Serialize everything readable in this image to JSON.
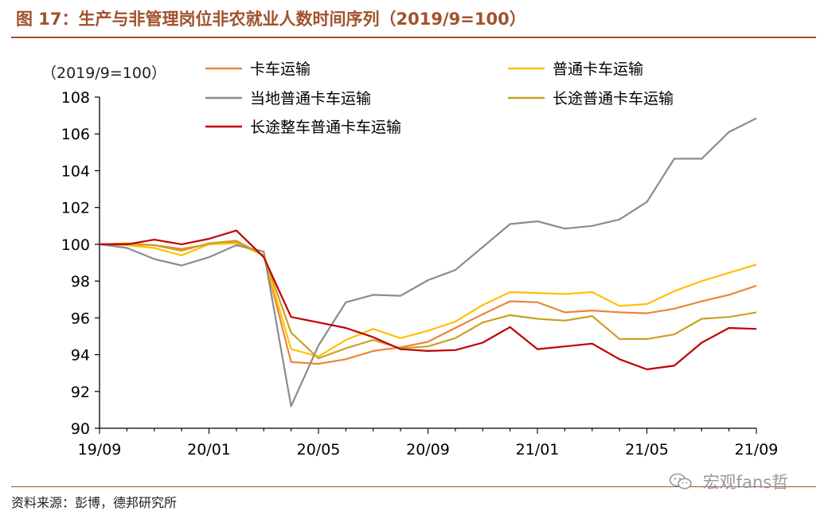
{
  "figure": {
    "title": "图 17：生产与非管理岗位非农就业人数时间序列（2019/9=100）",
    "source": "资料来源：彭博，德邦研究所",
    "watermark": "宏观fans哲"
  },
  "chart_data": {
    "type": "line",
    "unit_label": "（2019/9=100）",
    "x": [
      "19/09",
      "19/10",
      "19/11",
      "19/12",
      "20/01",
      "20/02",
      "20/03",
      "20/04",
      "20/05",
      "20/06",
      "20/07",
      "20/08",
      "20/09",
      "20/10",
      "20/11",
      "20/12",
      "21/01",
      "21/02",
      "21/03",
      "21/04",
      "21/05",
      "21/06",
      "21/07",
      "21/08",
      "21/09"
    ],
    "x_tick_labels": [
      "19/09",
      "20/01",
      "20/05",
      "20/09",
      "21/01",
      "21/05",
      "21/09"
    ],
    "ylim": [
      90,
      108
    ],
    "y_ticks": [
      90,
      92,
      94,
      96,
      98,
      100,
      102,
      104,
      106,
      108
    ],
    "legend_position": "top",
    "series": [
      {
        "name": "卡车运输",
        "color": "#e8873a",
        "values": [
          100.0,
          100.05,
          99.95,
          99.75,
          100.0,
          100.15,
          99.4,
          93.6,
          93.5,
          93.75,
          94.2,
          94.4,
          94.7,
          95.45,
          96.2,
          96.9,
          96.85,
          96.3,
          96.4,
          96.3,
          96.25,
          96.5,
          96.9,
          97.25,
          97.75
        ]
      },
      {
        "name": "普通卡车运输",
        "color": "#ffc000",
        "values": [
          100.0,
          99.95,
          99.8,
          99.4,
          100.0,
          100.05,
          99.4,
          94.3,
          93.9,
          94.8,
          95.4,
          94.9,
          95.3,
          95.8,
          96.7,
          97.4,
          97.35,
          97.3,
          97.4,
          96.65,
          96.75,
          97.45,
          98.0,
          98.45,
          98.9
        ]
      },
      {
        "name": "当地普通卡车运输",
        "color": "#8c8c8c",
        "values": [
          100.0,
          99.8,
          99.2,
          98.85,
          99.3,
          99.95,
          99.6,
          91.2,
          94.5,
          96.85,
          97.25,
          97.2,
          98.05,
          98.6,
          99.85,
          101.1,
          101.25,
          100.85,
          101.0,
          101.35,
          102.3,
          104.65,
          104.65,
          106.1,
          106.85
        ]
      },
      {
        "name": "长途普通卡车运输",
        "color": "#c9a224",
        "values": [
          100.0,
          100.0,
          99.95,
          99.65,
          100.05,
          100.2,
          99.4,
          95.2,
          93.8,
          94.35,
          94.8,
          94.35,
          94.45,
          94.9,
          95.75,
          96.15,
          95.95,
          95.85,
          96.1,
          94.85,
          94.85,
          95.1,
          95.95,
          96.05,
          96.3
        ]
      },
      {
        "name": "长途整车普通卡车运输",
        "color": "#c00000",
        "values": [
          100.0,
          100.0,
          100.25,
          100.0,
          100.3,
          100.75,
          99.3,
          96.05,
          95.75,
          95.45,
          94.95,
          94.3,
          94.2,
          94.25,
          94.65,
          95.5,
          94.3,
          94.45,
          94.6,
          93.75,
          93.2,
          93.4,
          94.65,
          95.45,
          95.4
        ]
      }
    ]
  }
}
